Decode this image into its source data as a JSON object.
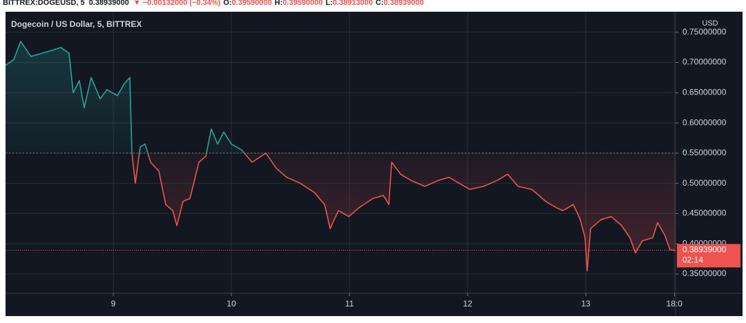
{
  "chart_data": {
    "type": "line",
    "symbol_info": "BITTREX:DOGEUSD, 5",
    "last": "0.38939000",
    "change": "▼ −0.00132000 (−0.34%)",
    "ohlc": [
      {
        "label": "O:",
        "value": "0.39590000"
      },
      {
        "label": "H:",
        "value": "0.39590000"
      },
      {
        "label": "L:",
        "value": "0.38913000"
      },
      {
        "label": "C:",
        "value": "0.38939000"
      }
    ],
    "title": "Dogecoin / US Dollar, 5, BITTREX",
    "currency": "USD",
    "x": [
      8.088,
      8.158,
      8.216,
      8.304,
      8.392,
      8.48,
      8.556,
      8.626,
      8.661,
      8.713,
      8.754,
      8.813,
      8.889,
      8.947,
      9.035,
      9.094,
      9.14,
      9.158,
      9.187,
      9.228,
      9.269,
      9.316,
      9.386,
      9.444,
      9.503,
      9.538,
      9.591,
      9.649,
      9.725,
      9.784,
      9.83,
      9.883,
      9.936,
      10.0,
      10.088,
      10.175,
      10.292,
      10.38,
      10.468,
      10.585,
      10.702,
      10.789,
      10.836,
      10.906,
      10.994,
      11.082,
      11.199,
      11.287,
      11.333,
      11.357,
      11.433,
      11.52,
      11.637,
      11.754,
      11.842,
      11.93,
      12.018,
      12.135,
      12.251,
      12.339,
      12.427,
      12.544,
      12.661,
      12.749,
      12.807,
      12.895,
      12.953,
      12.994,
      13.012,
      13.041,
      13.129,
      13.216,
      13.304,
      13.374,
      13.421,
      13.48,
      13.567,
      13.608,
      13.667,
      13.713,
      13.76
    ],
    "values": [
      0.695,
      0.705,
      0.735,
      0.71,
      0.715,
      0.72,
      0.725,
      0.715,
      0.65,
      0.67,
      0.625,
      0.675,
      0.64,
      0.655,
      0.645,
      0.665,
      0.675,
      0.55,
      0.5,
      0.56,
      0.565,
      0.535,
      0.52,
      0.465,
      0.455,
      0.43,
      0.47,
      0.475,
      0.535,
      0.545,
      0.59,
      0.565,
      0.585,
      0.565,
      0.555,
      0.535,
      0.55,
      0.525,
      0.51,
      0.5,
      0.485,
      0.465,
      0.425,
      0.455,
      0.445,
      0.46,
      0.475,
      0.48,
      0.465,
      0.535,
      0.515,
      0.505,
      0.495,
      0.505,
      0.51,
      0.5,
      0.49,
      0.495,
      0.505,
      0.515,
      0.495,
      0.49,
      0.47,
      0.46,
      0.455,
      0.465,
      0.44,
      0.41,
      0.355,
      0.425,
      0.44,
      0.445,
      0.43,
      0.41,
      0.385,
      0.405,
      0.41,
      0.435,
      0.415,
      0.39,
      0.389
    ],
    "baseline": 0.55,
    "colors": {
      "up": "#26a69a",
      "down": "#ef5350"
    },
    "last_price": {
      "value": 0.38939,
      "label": "0.38939000"
    },
    "countdown": "02:14",
    "xlim": [
      8.088,
      13.76
    ],
    "xticks": [
      9,
      10,
      11,
      12,
      13,
      {
        "value": 13.75,
        "label": "18:0"
      }
    ],
    "ylim": [
      0.318,
      0.784
    ],
    "yticks": [
      {
        "value": 0.35,
        "label": "0.35000000"
      },
      {
        "value": 0.4,
        "label": "0.40000000"
      },
      {
        "value": 0.45,
        "label": "0.45000000"
      },
      {
        "value": 0.5,
        "label": "0.50000000"
      },
      {
        "value": 0.55,
        "label": "0.55000000"
      },
      {
        "value": 0.6,
        "label": "0.60000000"
      },
      {
        "value": 0.65,
        "label": "0.65000000"
      },
      {
        "value": 0.7,
        "label": "0.70000000"
      },
      {
        "value": 0.75,
        "label": "0.75000000"
      }
    ],
    "grid": true
  }
}
